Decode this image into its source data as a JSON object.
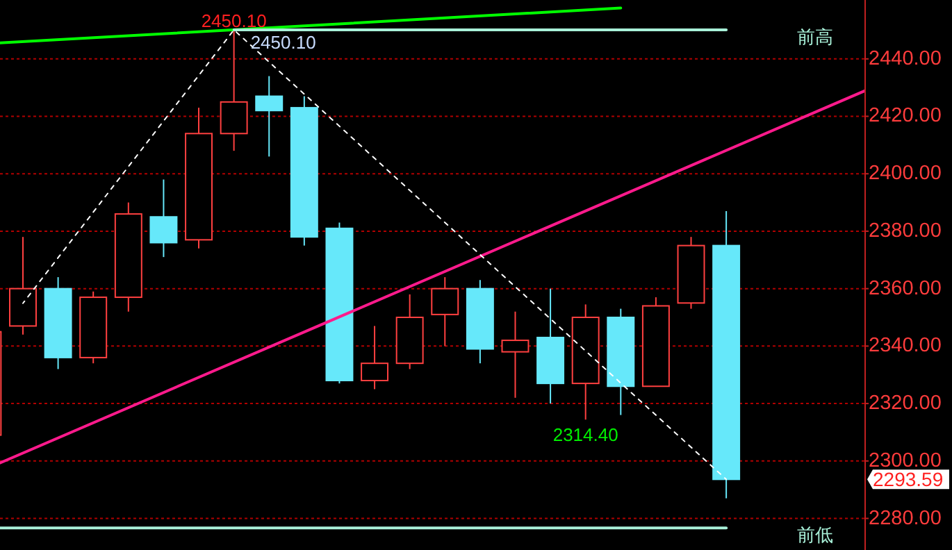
{
  "chart_data": {
    "type": "candlestick",
    "categories": [
      null,
      null,
      null,
      null,
      null,
      null,
      null,
      null,
      null,
      null,
      null,
      null,
      null,
      null,
      null,
      null,
      null,
      null,
      null,
      null,
      null,
      null,
      null,
      null,
      null,
      null
    ],
    "ohlc": [
      [
        2309,
        2345,
        2309,
        2345
      ],
      [
        2347,
        2378,
        2344,
        2360
      ],
      [
        2360,
        2364,
        2332,
        2336
      ],
      [
        2336,
        2359,
        2334,
        2357
      ],
      [
        2357,
        2390,
        2352,
        2386
      ],
      [
        2385,
        2398,
        2371,
        2376
      ],
      [
        2377,
        2423,
        2374,
        2414
      ],
      [
        2414,
        2450.1,
        2408,
        2425
      ],
      [
        2427,
        2434,
        2406,
        2422
      ],
      [
        2423,
        2427,
        2375,
        2378
      ],
      [
        2381,
        2383,
        2327,
        2328
      ],
      [
        2328,
        2347,
        2325,
        2334
      ],
      [
        2334,
        2358,
        2332,
        2350
      ],
      [
        2351,
        2364,
        2340,
        2360
      ],
      [
        2360,
        2363,
        2334,
        2339
      ],
      [
        2338,
        2352,
        2322,
        2342
      ],
      [
        2343,
        2360,
        2320,
        2327
      ],
      [
        2327,
        2354.5,
        2314.4,
        2350
      ],
      [
        2350,
        2353,
        2316,
        2326
      ],
      [
        2326,
        2357,
        2326,
        2354
      ],
      [
        2355,
        2378,
        2353,
        2375
      ],
      [
        2375,
        2387,
        2287,
        2293.59
      ],
      null,
      null,
      null,
      null
    ],
    "colors": [
      "#ff4040",
      "#ff4040",
      "#66e8fa",
      "#ff4040",
      "#ff4040",
      "#66e8fa",
      "#ff4040",
      "#ff4040",
      "#66e8fa",
      "#66e8fa",
      "#66e8fa",
      "#ff4040",
      "#ff4040",
      "#ff4040",
      "#66e8fa",
      "#ff4040",
      "#66e8fa",
      "#ff4040",
      "#66e8fa",
      "#ff4040",
      "#ff4040",
      "#66e8fa",
      null,
      null,
      null,
      null
    ],
    "series": [
      {
        "type": "line",
        "color": "#00ff00",
        "values": [
          2445.3,
          null,
          null,
          null,
          null,
          null,
          null,
          null,
          null,
          null,
          null,
          null,
          null,
          null,
          null,
          null,
          null,
          null,
          2457.7,
          null,
          null,
          null,
          null,
          null,
          null,
          null
        ]
      },
      {
        "type": "line",
        "color": "#ff1a8c",
        "values": [
          2297.5,
          null,
          null,
          null,
          null,
          null,
          null,
          null,
          null,
          null,
          null,
          null,
          null,
          null,
          null,
          null,
          null,
          null,
          null,
          null,
          null,
          null,
          null,
          null,
          null,
          2429.2
        ]
      },
      {
        "type": "line",
        "color": "#ffffff",
        "line_style": "dashed",
        "values": [
          null,
          2354.9,
          null,
          null,
          null,
          null,
          null,
          2450.1,
          null,
          null,
          null,
          null,
          null,
          null,
          null,
          null,
          null,
          null,
          null,
          null,
          null,
          2293.6,
          null,
          null,
          null,
          null
        ]
      },
      {
        "type": "line",
        "name": "前高",
        "color": "#a8f0d8",
        "values": [
          null,
          null,
          null,
          null,
          null,
          null,
          null,
          2450.1,
          null,
          null,
          null,
          null,
          null,
          null,
          null,
          null,
          null,
          null,
          null,
          null,
          null,
          2450.1,
          null,
          null,
          null,
          null
        ]
      },
      {
        "type": "line",
        "name": "前低",
        "color": "#a8f0d8",
        "values": [
          2276.7,
          null,
          null,
          null,
          null,
          null,
          null,
          null,
          null,
          null,
          null,
          null,
          null,
          null,
          null,
          null,
          null,
          null,
          null,
          null,
          null,
          2276.7,
          null,
          null,
          null,
          null
        ]
      }
    ],
    "ylim": [
      2269,
      2460.5
    ],
    "yticks": [
      {
        "value": 2280,
        "label": "2280.00"
      },
      {
        "value": 2300,
        "label": "2300.00"
      },
      {
        "value": 2320,
        "label": "2320.00"
      },
      {
        "value": 2340,
        "label": "2340.00"
      },
      {
        "value": 2360,
        "label": "2360.00"
      },
      {
        "value": 2380,
        "label": "2380.00"
      },
      {
        "value": 2400,
        "label": "2400.00"
      },
      {
        "value": 2420,
        "label": "2420.00"
      },
      {
        "value": 2440,
        "label": "2440.00"
      }
    ],
    "grid": "y",
    "tick_labels": "y",
    "annotations": [
      {
        "text": "2450.10",
        "y": 2450.1
      },
      {
        "text": "2450.10",
        "y": 2450.1
      },
      {
        "text": "2314.40",
        "y": 2314.4
      },
      "2293.59"
    ]
  }
}
